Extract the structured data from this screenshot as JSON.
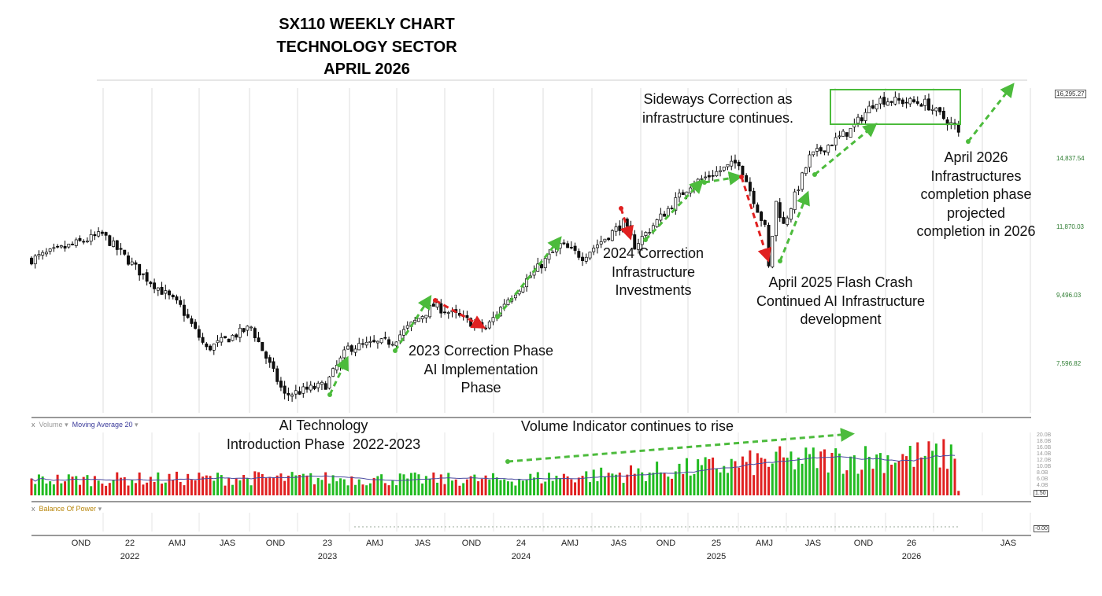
{
  "title": {
    "line1": "SX110 WEEKLY CHART",
    "line2": "TECHNOLOGY SECTOR",
    "line3": "APRIL 2026"
  },
  "annotations": {
    "sideways": "Sideways Correction as\ninfrastructure continues.",
    "april2026": "April 2026\nInfrastructures\ncompletion phase\nprojected\ncompletion in 2026",
    "corr2024": "2024 Correction\nInfrastructure\nInvestments",
    "flash2025": "April 2025 Flash Crash\nContinued AI Infrastructure\ndevelopment",
    "corr2023": "2023 Correction Phase\nAI Implementation\nPhase",
    "intro": "AI Technology\nIntroduction Phase  2022-2023",
    "volume": "Volume Indicator continues to rise"
  },
  "panels": {
    "volume_label": "Volume",
    "ma_label": "Moving Average 20",
    "bop_label": "Balance Of Power",
    "close_glyph": "x",
    "dropdown_glyph": "▾"
  },
  "chart_data": {
    "type": "candlestick",
    "title": "SX110 WEEKLY CHART TECHNOLOGY SECTOR APRIL 2026",
    "scale": "log",
    "price_ticks": [
      "16,295.27",
      "14,837.54",
      "11,870.03",
      "9,496.03",
      "7,596.82"
    ],
    "price_tick_values": [
      16295.27,
      14837.54,
      11870.03,
      9496.03,
      7596.82
    ],
    "last_price": "16,295.27",
    "volume_ticks": [
      "20.0B",
      "18.0B",
      "16.0B",
      "14.0B",
      "12.0B",
      "10.0B",
      "8.0B",
      "6.0B",
      "4.0B"
    ],
    "last_volume": "1.50",
    "bop_last": "-0.00",
    "x_ticks": [
      "OND",
      "22",
      "AMJ",
      "JAS",
      "OND",
      "23",
      "AMJ",
      "JAS",
      "OND",
      "24",
      "AMJ",
      "JAS",
      "OND",
      "25",
      "AMJ",
      "JAS",
      "OND",
      "26",
      "",
      "JAS"
    ],
    "year_labels": [
      "2022",
      "2023",
      "2024",
      "2025",
      "2026"
    ],
    "weeks_total": 250,
    "close_anchors_week_price": [
      [
        0,
        10690
      ],
      [
        19,
        11600
      ],
      [
        30,
        10150
      ],
      [
        40,
        9160
      ],
      [
        47,
        7980
      ],
      [
        59,
        8570
      ],
      [
        68,
        6860
      ],
      [
        79,
        7100
      ],
      [
        85,
        8010
      ],
      [
        97,
        8190
      ],
      [
        108,
        9200
      ],
      [
        122,
        8520
      ],
      [
        127,
        9280
      ],
      [
        142,
        11200
      ],
      [
        148,
        10790
      ],
      [
        159,
        12030
      ],
      [
        162,
        11180
      ],
      [
        177,
        13650
      ],
      [
        190,
        14700
      ],
      [
        197,
        11840
      ],
      [
        198,
        10400
      ],
      [
        200,
        12870
      ],
      [
        202,
        11950
      ],
      [
        209,
        14900
      ],
      [
        220,
        16300
      ],
      [
        227,
        18000
      ],
      [
        240,
        17800
      ],
      [
        248,
        16460
      ],
      [
        249,
        16070
      ]
    ],
    "volume_trend_B": [
      [
        0,
        5
      ],
      [
        60,
        5.5
      ],
      [
        125,
        5
      ],
      [
        160,
        7
      ],
      [
        200,
        11
      ],
      [
        249,
        13
      ]
    ]
  }
}
